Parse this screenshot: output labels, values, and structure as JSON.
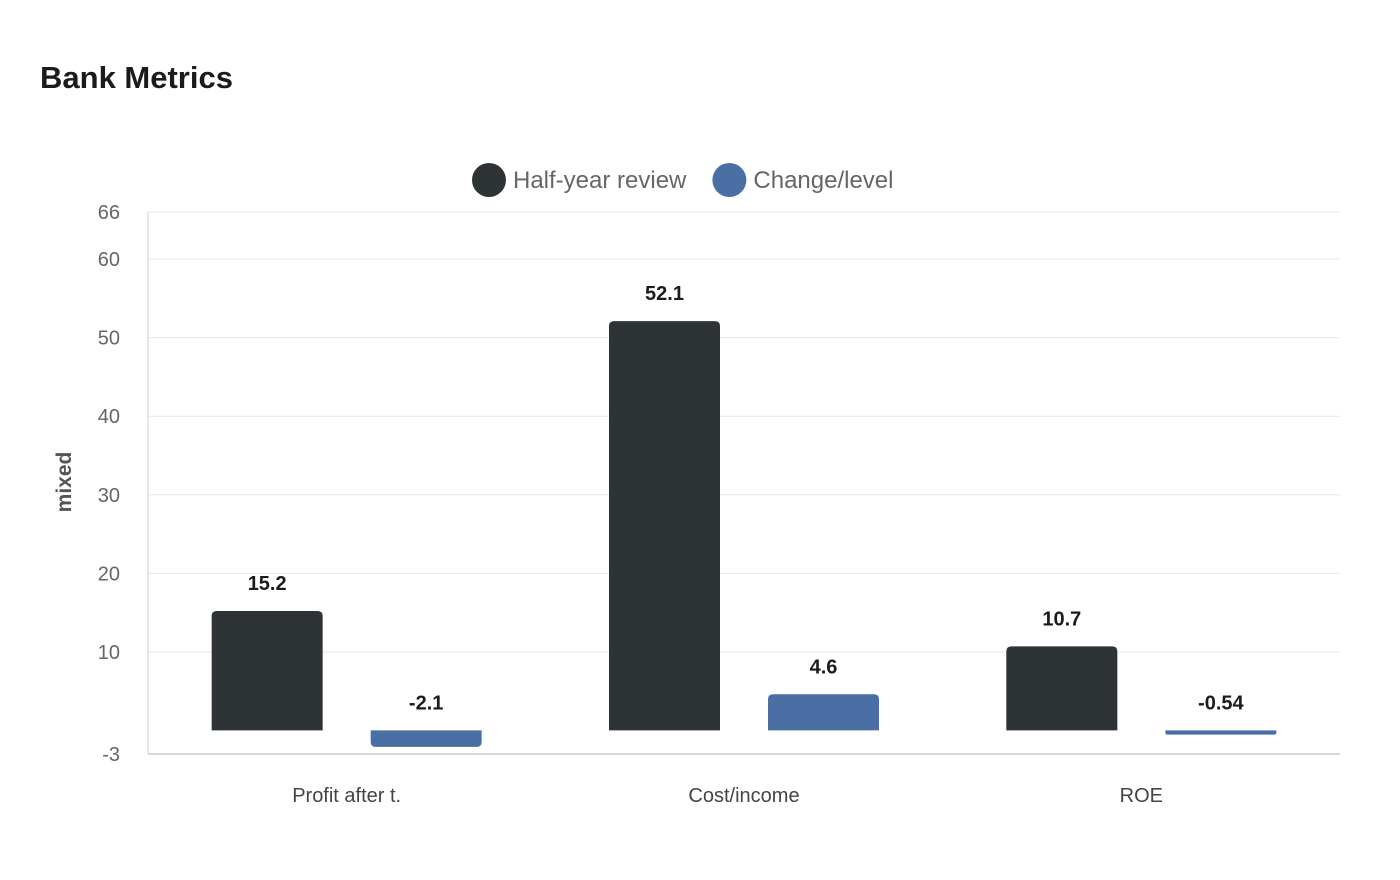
{
  "chart_data": {
    "type": "bar",
    "title": "Bank Metrics",
    "ylabel": "mixed",
    "xlabel": "",
    "categories": [
      "Profit after t.",
      "Cost/income",
      "ROE"
    ],
    "series": [
      {
        "name": "Half-year review",
        "color": "#2e3436",
        "values": [
          15.2,
          52.1,
          10.7
        ],
        "labels": [
          "15.2",
          "52.1",
          "10.7"
        ]
      },
      {
        "name": "Change/level",
        "color": "#4a6fa5",
        "values": [
          -2.1,
          4.6,
          -0.54
        ],
        "labels": [
          "-2.1",
          "4.6",
          "-0.54"
        ]
      }
    ],
    "ylim": [
      -3,
      66
    ],
    "yticks": [
      -3,
      10,
      20,
      30,
      40,
      50,
      60,
      66
    ],
    "grid": true,
    "legend_position": "top-center"
  }
}
